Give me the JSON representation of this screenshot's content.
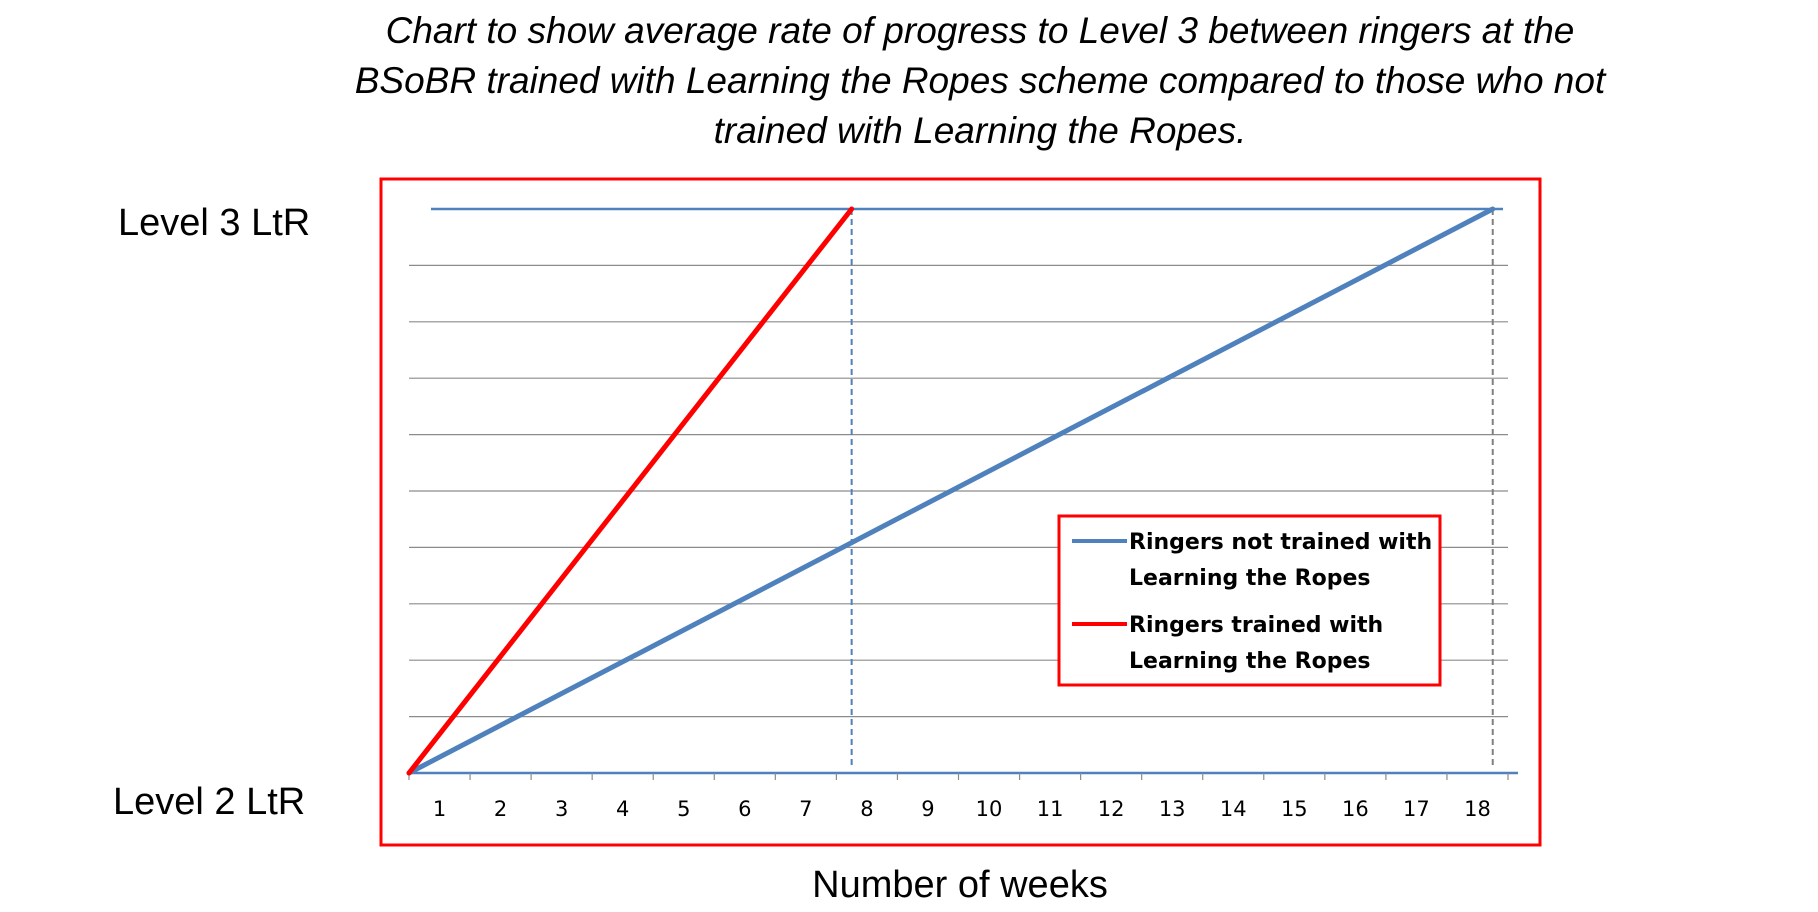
{
  "chart_data": {
    "type": "line",
    "title_lines": [
      "Chart to show average rate of progress to Level 3 between ringers at the",
      "BSoBR trained with Learning the Ropes scheme compared to those who not",
      "trained with Learning the Ropes."
    ],
    "xlabel": "Number of weeks",
    "y_labels": {
      "top": "Level 3 LtR",
      "bottom": "Level 2 LtR"
    },
    "categories": [
      "1",
      "2",
      "3",
      "4",
      "5",
      "6",
      "7",
      "8",
      "9",
      "10",
      "11",
      "12",
      "13",
      "14",
      "15",
      "16",
      "17",
      "18"
    ],
    "xlim": [
      0,
      18
    ],
    "ylim": [
      0,
      1
    ],
    "y_gridlines": 10,
    "grid": true,
    "legend_position": "right",
    "series": [
      {
        "name": "Ringers not trained with Learning the Ropes",
        "name_lines": [
          "Ringers not trained with",
          "Learning the Ropes"
        ],
        "color": "#4F81BD",
        "points": [
          [
            0,
            0
          ],
          [
            17.75,
            1
          ]
        ]
      },
      {
        "name": "Ringers trained with Learning the Ropes",
        "name_lines": [
          "Ringers trained with",
          "Learning the Ropes"
        ],
        "color": "#FF0000",
        "points": [
          [
            0,
            0
          ],
          [
            7.25,
            1
          ]
        ]
      }
    ],
    "reference_lines": [
      {
        "x": 7.25,
        "color": "#4F81BD",
        "style": "dashed"
      },
      {
        "x": 17.75,
        "color": "#808080",
        "style": "dashed"
      }
    ],
    "frame_color": "#FF0000"
  }
}
